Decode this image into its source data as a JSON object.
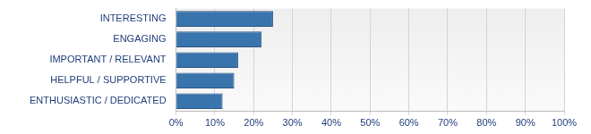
{
  "chart_data": {
    "type": "bar",
    "orientation": "horizontal",
    "categories": [
      "INTERESTING",
      "ENGAGING",
      "IMPORTANT / RELEVANT",
      "HELPFUL / SUPPORTIVE",
      "ENTHUSIASTIC / DEDICATED"
    ],
    "values": [
      25,
      22,
      16,
      15,
      12
    ],
    "color": "#3a74ad",
    "xlim": [
      0,
      100
    ],
    "xticks": [
      {
        "value": 0,
        "label": "0%"
      },
      {
        "value": 10,
        "label": "10%"
      },
      {
        "value": 20,
        "label": "20%"
      },
      {
        "value": 30,
        "label": "30%"
      },
      {
        "value": 40,
        "label": "40%"
      },
      {
        "value": 50,
        "label": "50%"
      },
      {
        "value": 60,
        "label": "60%"
      },
      {
        "value": 70,
        "label": "70%"
      },
      {
        "value": 80,
        "label": "80%"
      },
      {
        "value": 90,
        "label": "90%"
      },
      {
        "value": 100,
        "label": "100%"
      }
    ],
    "grid": true
  }
}
